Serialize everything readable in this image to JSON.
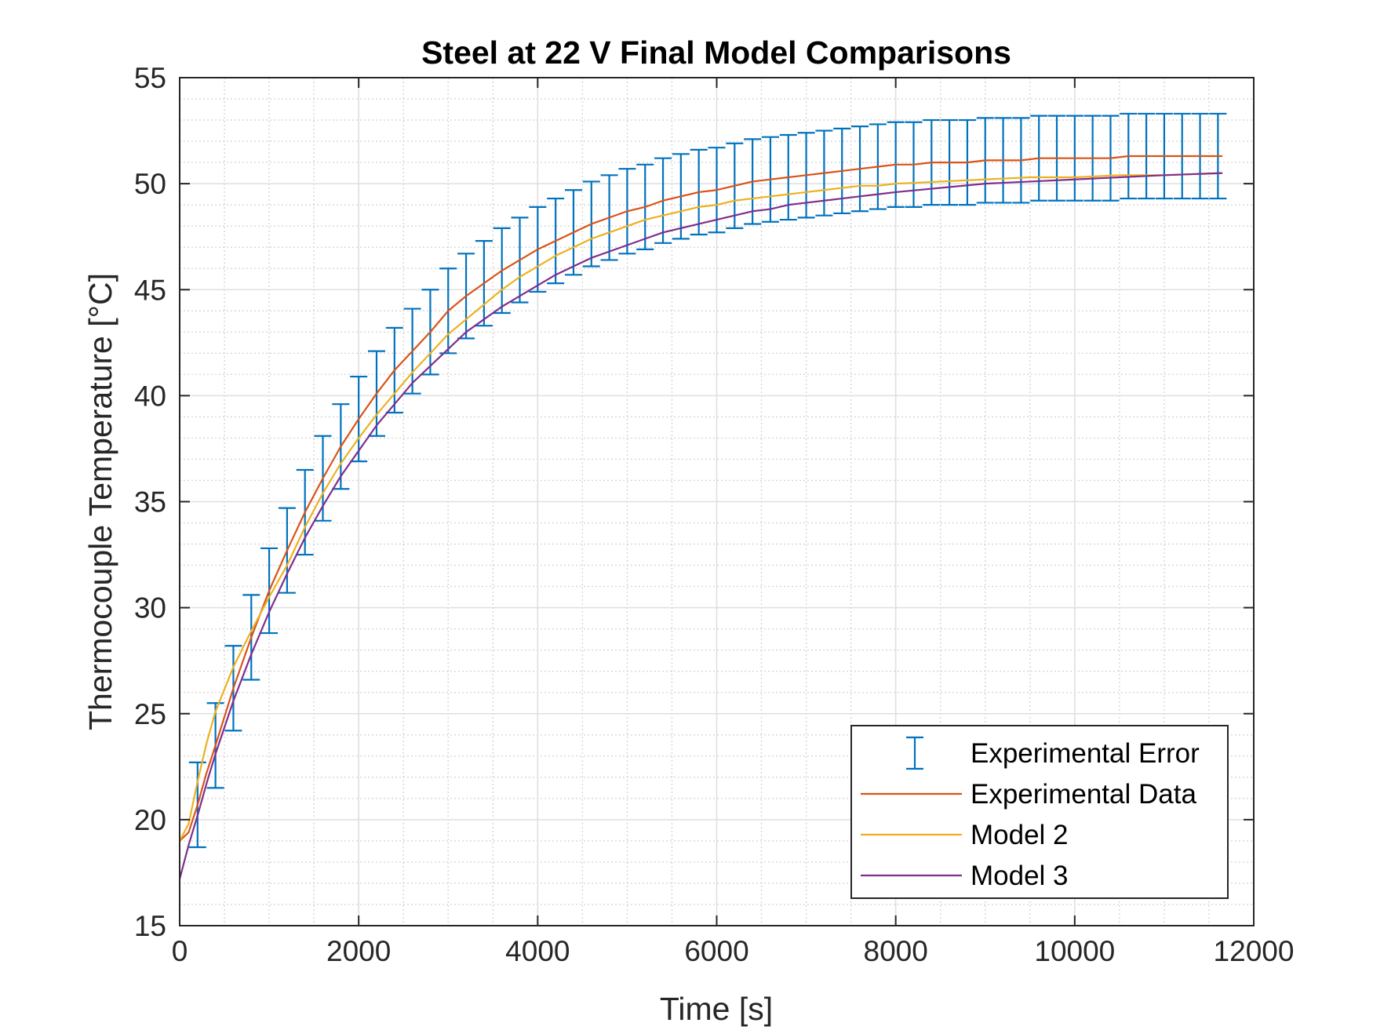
{
  "chart_data": {
    "type": "line",
    "title": "Steel at 22 V Final Model Comparisons",
    "xlabel": "Time [s]",
    "ylabel": "Thermocouple Temperature [°C]",
    "xlim": [
      0,
      12000
    ],
    "ylim": [
      15,
      55
    ],
    "xticks": [
      0,
      2000,
      4000,
      6000,
      8000,
      10000,
      12000
    ],
    "xtick_labels": [
      "0",
      "2000",
      "4000",
      "6000",
      "8000",
      "10000",
      "12000"
    ],
    "yticks": [
      15,
      20,
      25,
      30,
      35,
      40,
      45,
      50,
      55
    ],
    "ytick_labels": [
      "15",
      "20",
      "25",
      "30",
      "35",
      "40",
      "45",
      "50",
      "55"
    ],
    "grid": true,
    "minor_grid": true,
    "legend_position": "bottom-right",
    "series": [
      {
        "name": "Experimental Error",
        "kind": "errorbar",
        "color": "#0072BD",
        "x": [
          200,
          400,
          600,
          800,
          1000,
          1200,
          1400,
          1600,
          1800,
          2000,
          2200,
          2400,
          2600,
          2800,
          3000,
          3200,
          3400,
          3600,
          3800,
          4000,
          4200,
          4400,
          4600,
          4800,
          5000,
          5200,
          5400,
          5600,
          5800,
          6000,
          6200,
          6400,
          6600,
          6800,
          7000,
          7200,
          7400,
          7600,
          7800,
          8000,
          8200,
          8400,
          8600,
          8800,
          9000,
          9200,
          9400,
          9600,
          9800,
          10000,
          10200,
          10400,
          10600,
          10800,
          11000,
          11200,
          11400,
          11600
        ],
        "y": [
          20.7,
          23.5,
          26.2,
          28.6,
          30.8,
          32.7,
          34.5,
          36.1,
          37.6,
          38.9,
          40.1,
          41.2,
          42.1,
          43.0,
          44.0,
          44.7,
          45.3,
          45.9,
          46.4,
          46.9,
          47.3,
          47.7,
          48.1,
          48.4,
          48.7,
          48.9,
          49.2,
          49.4,
          49.6,
          49.7,
          49.9,
          50.1,
          50.2,
          50.3,
          50.4,
          50.5,
          50.6,
          50.7,
          50.8,
          50.9,
          50.9,
          51.0,
          51.0,
          51.0,
          51.1,
          51.1,
          51.1,
          51.2,
          51.2,
          51.2,
          51.2,
          51.2,
          51.3,
          51.3,
          51.3,
          51.3,
          51.3,
          51.3
        ],
        "error": 2.0
      },
      {
        "name": "Experimental Data",
        "kind": "line",
        "color": "#D95319",
        "x": [
          0,
          100,
          200,
          300,
          400,
          600,
          800,
          1000,
          1200,
          1400,
          1600,
          1800,
          2000,
          2200,
          2400,
          2600,
          2800,
          3000,
          3200,
          3400,
          3600,
          3800,
          4000,
          4200,
          4400,
          4600,
          4800,
          5000,
          5200,
          5400,
          5600,
          5800,
          6000,
          6200,
          6400,
          6600,
          6800,
          7000,
          7200,
          7400,
          7600,
          7800,
          8000,
          8200,
          8400,
          8600,
          8800,
          9000,
          9200,
          9400,
          9600,
          9800,
          10000,
          10200,
          10400,
          10600,
          10800,
          11000,
          11200,
          11400,
          11650
        ],
        "y": [
          19.0,
          19.4,
          20.7,
          22.2,
          23.5,
          26.2,
          28.6,
          30.8,
          32.7,
          34.5,
          36.1,
          37.6,
          38.9,
          40.1,
          41.2,
          42.1,
          43.0,
          44.0,
          44.7,
          45.3,
          45.9,
          46.4,
          46.9,
          47.3,
          47.7,
          48.1,
          48.4,
          48.7,
          48.9,
          49.2,
          49.4,
          49.6,
          49.7,
          49.9,
          50.1,
          50.2,
          50.3,
          50.4,
          50.5,
          50.6,
          50.7,
          50.8,
          50.9,
          50.9,
          51.0,
          51.0,
          51.0,
          51.1,
          51.1,
          51.1,
          51.2,
          51.2,
          51.2,
          51.2,
          51.2,
          51.3,
          51.3,
          51.3,
          51.3,
          51.3,
          51.3
        ]
      },
      {
        "name": "Model 2",
        "kind": "line",
        "color": "#EDB120",
        "x": [
          0,
          100,
          200,
          300,
          400,
          600,
          800,
          1000,
          1200,
          1400,
          1600,
          1800,
          2000,
          2200,
          2400,
          2600,
          2800,
          3000,
          3200,
          3400,
          3600,
          3800,
          4000,
          4200,
          4400,
          4600,
          4800,
          5000,
          5200,
          5400,
          5600,
          5800,
          6000,
          6200,
          6400,
          6600,
          6800,
          7000,
          7200,
          7400,
          7600,
          7800,
          8000,
          8500,
          9000,
          9500,
          10000,
          10500,
          11000,
          11650
        ],
        "y": [
          19.0,
          19.8,
          21.8,
          23.6,
          25.1,
          27.2,
          28.9,
          30.5,
          32.0,
          33.8,
          35.4,
          36.8,
          38.0,
          39.1,
          40.1,
          41.1,
          42.0,
          42.9,
          43.6,
          44.3,
          45.0,
          45.6,
          46.1,
          46.6,
          47.0,
          47.4,
          47.7,
          48.0,
          48.3,
          48.5,
          48.7,
          48.9,
          49.0,
          49.2,
          49.3,
          49.4,
          49.5,
          49.6,
          49.7,
          49.8,
          49.9,
          49.9,
          50.0,
          50.1,
          50.2,
          50.3,
          50.3,
          50.4,
          50.4,
          50.5
        ]
      },
      {
        "name": "Model 3",
        "kind": "line",
        "color": "#7E2F8E",
        "x": [
          0,
          100,
          200,
          300,
          400,
          600,
          800,
          1000,
          1200,
          1400,
          1600,
          1800,
          2000,
          2200,
          2400,
          2600,
          2800,
          3000,
          3200,
          3400,
          3600,
          3800,
          4000,
          4200,
          4400,
          4600,
          4800,
          5000,
          5200,
          5400,
          5600,
          5800,
          6000,
          6200,
          6400,
          6600,
          6800,
          7000,
          7200,
          7400,
          7600,
          7800,
          8000,
          8500,
          9000,
          9500,
          10000,
          10500,
          11000,
          11650
        ],
        "y": [
          17.2,
          18.8,
          20.2,
          21.7,
          23.1,
          25.6,
          27.8,
          29.8,
          31.6,
          33.3,
          34.8,
          36.2,
          37.4,
          38.6,
          39.6,
          40.6,
          41.4,
          42.2,
          43.0,
          43.6,
          44.2,
          44.7,
          45.2,
          45.7,
          46.1,
          46.5,
          46.8,
          47.1,
          47.4,
          47.7,
          47.9,
          48.1,
          48.3,
          48.5,
          48.7,
          48.8,
          49.0,
          49.1,
          49.2,
          49.3,
          49.4,
          49.5,
          49.6,
          49.8,
          50.0,
          50.1,
          50.2,
          50.3,
          50.4,
          50.5
        ]
      }
    ]
  }
}
